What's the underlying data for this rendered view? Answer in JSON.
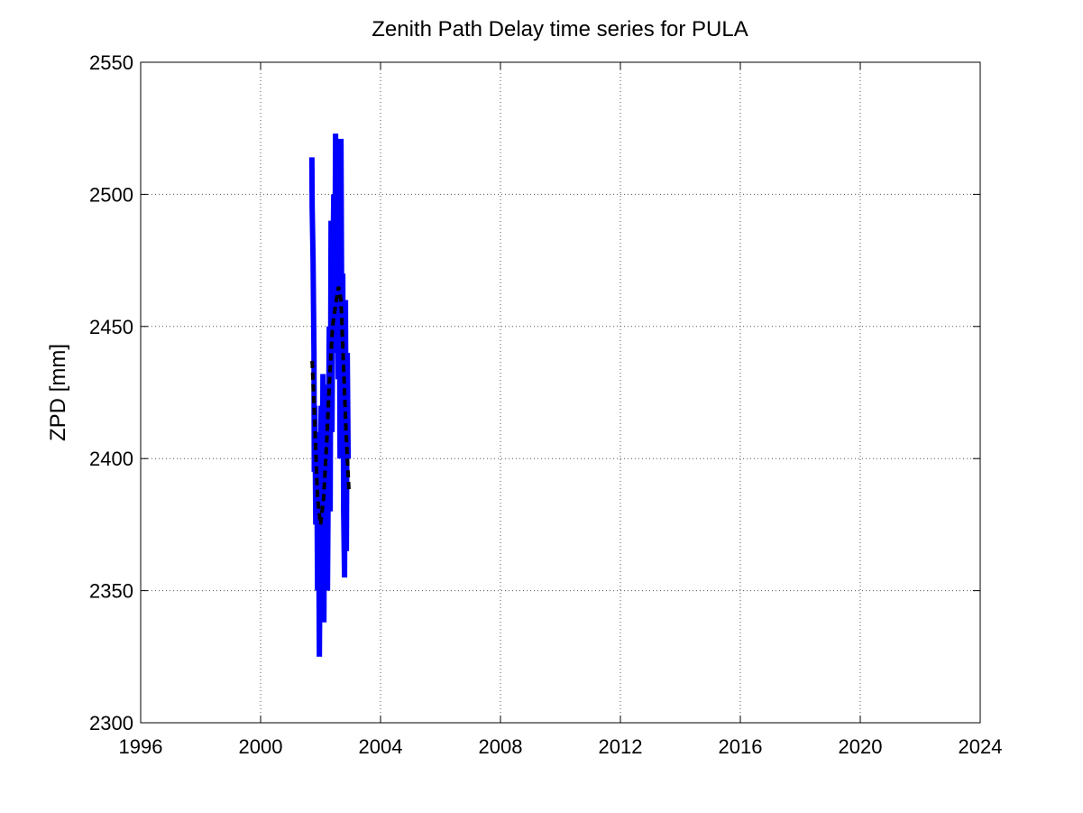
{
  "chart_data": {
    "type": "line",
    "title": "Zenith Path Delay time series for PULA",
    "y_label": "ZPD [mm]",
    "series": [
      {
        "color": "#0000ff",
        "line_style": "solid",
        "x": [
          2001.71,
          2001.72,
          2001.75,
          2001.78,
          2001.79,
          2001.81,
          2001.84,
          2001.87,
          2001.9,
          2001.93,
          2001.96,
          2001.99,
          2002.02,
          2002.05,
          2002.08,
          2002.11,
          2002.14,
          2002.17,
          2002.2,
          2002.23,
          2002.26,
          2002.29,
          2002.32,
          2002.35,
          2002.38,
          2002.41,
          2002.44,
          2002.47,
          2002.5,
          2002.53,
          2002.56,
          2002.59,
          2002.62,
          2002.65,
          2002.68,
          2002.71,
          2002.74,
          2002.77,
          2002.8,
          2002.83,
          2002.86,
          2002.89,
          2002.92
        ],
        "values": [
          2514,
          2495,
          2475,
          2440,
          2395,
          2420,
          2375,
          2410,
          2350,
          2400,
          2325,
          2380,
          2420,
          2360,
          2432,
          2338,
          2415,
          2380,
          2428,
          2350,
          2400,
          2450,
          2380,
          2490,
          2410,
          2470,
          2500,
          2440,
          2523,
          2450,
          2510,
          2430,
          2490,
          2400,
          2521,
          2440,
          2470,
          2380,
          2355,
          2460,
          2365,
          2440,
          2400
        ]
      },
      {
        "color": "#000000",
        "line_style": "dashed",
        "x": [
          2001.72,
          2001.8,
          2001.9,
          2002.0,
          2002.1,
          2002.2,
          2002.3,
          2002.4,
          2002.5,
          2002.6,
          2002.68,
          2002.75,
          2002.85,
          2002.95
        ],
        "values": [
          2437,
          2415,
          2385,
          2375,
          2385,
          2405,
          2430,
          2450,
          2458,
          2465,
          2460,
          2440,
          2410,
          2387
        ]
      }
    ],
    "xlim": [
      1996,
      2024
    ],
    "xticks": [
      1996,
      2000,
      2004,
      2008,
      2012,
      2016,
      2020,
      2024
    ],
    "ylim": [
      2300,
      2550
    ],
    "yticks": [
      2300,
      2350,
      2400,
      2450,
      2500,
      2550
    ],
    "grid": true
  }
}
